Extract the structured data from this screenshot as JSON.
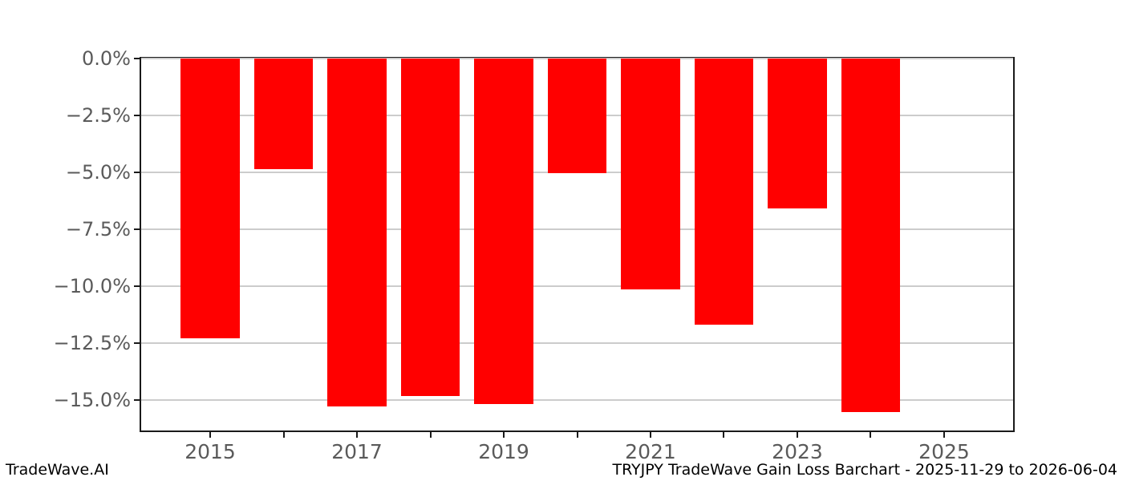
{
  "footer": {
    "brand": "TradeWave.AI",
    "caption": "TRYJPY TradeWave Gain Loss Barchart - 2025-11-29 to 2026-06-04"
  },
  "colors": {
    "bar": "#ff0000",
    "grid": "#cccccc",
    "spine": "#1a1a1a",
    "tick_label": "#5a5a5a",
    "footer_text": "#000000",
    "background": "#ffffff"
  },
  "chart_data": {
    "type": "bar",
    "title": "",
    "xlabel": "",
    "ylabel": "",
    "x": [
      2015,
      2016,
      2017,
      2018,
      2019,
      2020,
      2021,
      2022,
      2023,
      2024
    ],
    "values": [
      -12.3,
      -4.85,
      -15.3,
      -14.85,
      -15.2,
      -5.05,
      -10.15,
      -11.7,
      -6.6,
      -15.55
    ],
    "bar_width_years": 0.8,
    "xlim": [
      2014.06,
      2025.94
    ],
    "ylim": [
      -16.35,
      0
    ],
    "yticks": [
      0,
      -2.5,
      -5,
      -7.5,
      -10,
      -12.5,
      -15
    ],
    "ytick_labels": [
      "0.0%",
      "−2.5%",
      "−5.0%",
      "−7.5%",
      "−10.0%",
      "−12.5%",
      "−15.0%"
    ],
    "xticks": [
      2015,
      2016,
      2017,
      2018,
      2019,
      2020,
      2021,
      2022,
      2023,
      2024,
      2025
    ],
    "xtick_labels": {
      "2015": "2015",
      "2017": "2017",
      "2019": "2019",
      "2021": "2021",
      "2023": "2023",
      "2025": "2025"
    },
    "grid": "horizontal",
    "legend": null
  }
}
